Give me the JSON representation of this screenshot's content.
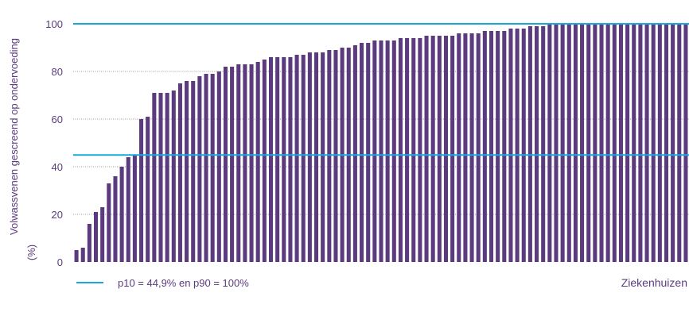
{
  "chart_data": {
    "type": "bar",
    "xlabel": "Ziekenhuizen",
    "ylabel": [
      "Volwassvenen gescreend op ondervoeding",
      "(%)"
    ],
    "ylim": [
      0,
      100
    ],
    "yticks": [
      0,
      20,
      40,
      60,
      80,
      100
    ],
    "grid": "horizontal-dotted",
    "values": [
      5,
      6,
      16,
      21,
      23,
      33,
      36,
      40,
      44,
      45,
      60,
      61,
      71,
      71,
      71,
      72,
      75,
      76,
      76,
      78,
      79,
      79,
      80,
      82,
      82,
      83,
      83,
      83,
      84,
      85,
      86,
      86,
      86,
      86,
      87,
      87,
      88,
      88,
      88,
      89,
      89,
      90,
      90,
      91,
      92,
      92,
      93,
      93,
      93,
      93,
      94,
      94,
      94,
      94,
      95,
      95,
      95,
      95,
      95,
      96,
      96,
      96,
      96,
      97,
      97,
      97,
      97,
      98,
      98,
      98,
      99,
      99,
      99,
      100,
      100,
      100,
      100,
      100,
      100,
      100,
      100,
      100,
      100,
      100,
      100,
      100,
      100,
      100,
      100,
      100,
      100,
      100,
      100,
      100,
      100
    ],
    "reference_lines": [
      {
        "name": "p10",
        "value": 44.9
      },
      {
        "name": "p90",
        "value": 100
      }
    ],
    "legend": {
      "placement": "bottom-left",
      "label": "p10 = 44,9% en p90 = 100%"
    }
  },
  "colors": {
    "bar": "#5b3a7e",
    "reference_line": "#1aa7e0",
    "text": "#5b3a7e",
    "grid": "#7a7a7a"
  }
}
